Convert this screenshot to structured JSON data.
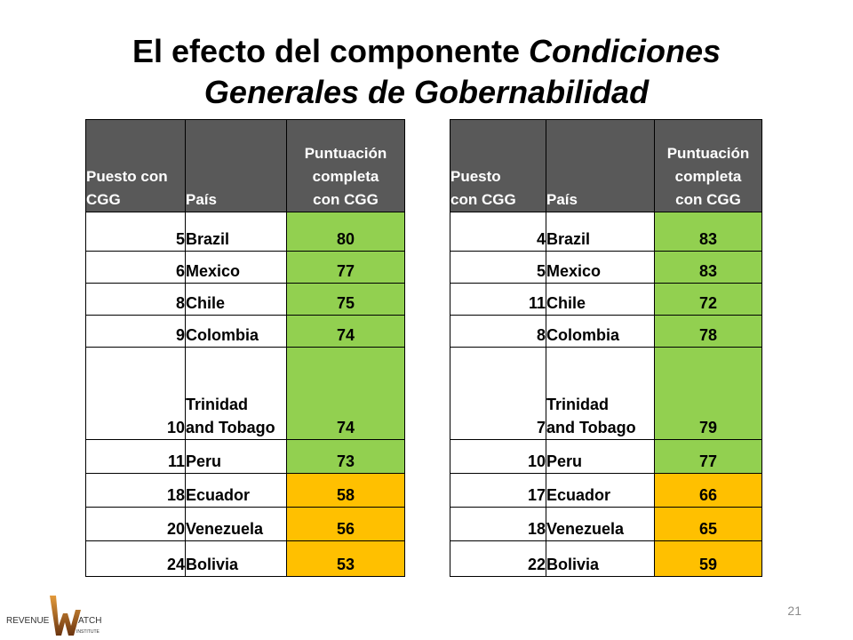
{
  "slide": {
    "title": {
      "line1_plain": "El efecto del componente",
      "line1_italic": "Condiciones",
      "line2_italic": "Generales de Gobernabilidad"
    },
    "page_number": "21",
    "logo": {
      "left": "REVENUE",
      "mark": "W",
      "right": "ATCH",
      "sub": "INSTITUTE"
    }
  },
  "colors": {
    "header_bg": "#595959",
    "header_text": "#FFFFFF",
    "border": "#000000",
    "green": "#92D050",
    "orange": "#FFC000"
  },
  "tables": [
    {
      "headers": {
        "rank": "Puesto con CGG",
        "country": "País",
        "score": "Puntuación completa con CGG"
      },
      "rows": [
        {
          "rank": 5,
          "country": "Brazil",
          "score": 80,
          "fill": "#92D050"
        },
        {
          "rank": 6,
          "country": "Mexico",
          "score": 77,
          "fill": "#92D050"
        },
        {
          "rank": 8,
          "country": "Chile",
          "score": 75,
          "fill": "#92D050"
        },
        {
          "rank": 9,
          "country": "Colombia",
          "score": 74,
          "fill": "#92D050"
        },
        {
          "rank": 10,
          "country": "Trinidad and Tobago",
          "score": 74,
          "fill": "#92D050"
        },
        {
          "rank": 11,
          "country": "Peru",
          "score": 73,
          "fill": "#92D050"
        },
        {
          "rank": 18,
          "country": "Ecuador",
          "score": 58,
          "fill": "#FFC000"
        },
        {
          "rank": 20,
          "country": "Venezuela",
          "score": 56,
          "fill": "#FFC000"
        },
        {
          "rank": 24,
          "country": "Bolivia",
          "score": 53,
          "fill": "#FFC000"
        }
      ]
    },
    {
      "headers": {
        "rank": "Puesto con CGG",
        "country": "País",
        "score": "Puntuación completa con CGG"
      },
      "rows": [
        {
          "rank": 4,
          "country": "Brazil",
          "score": 83,
          "fill": "#92D050"
        },
        {
          "rank": 5,
          "country": "Mexico",
          "score": 83,
          "fill": "#92D050"
        },
        {
          "rank": 11,
          "country": "Chile",
          "score": 72,
          "fill": "#92D050"
        },
        {
          "rank": 8,
          "country": "Colombia",
          "score": 78,
          "fill": "#92D050"
        },
        {
          "rank": 7,
          "country": "Trinidad and Tobago",
          "score": 79,
          "fill": "#92D050"
        },
        {
          "rank": 10,
          "country": "Peru",
          "score": 77,
          "fill": "#92D050"
        },
        {
          "rank": 17,
          "country": "Ecuador",
          "score": 66,
          "fill": "#FFC000"
        },
        {
          "rank": 18,
          "country": "Venezuela",
          "score": 65,
          "fill": "#FFC000"
        },
        {
          "rank": 22,
          "country": "Bolivia",
          "score": 59,
          "fill": "#FFC000"
        }
      ]
    }
  ]
}
